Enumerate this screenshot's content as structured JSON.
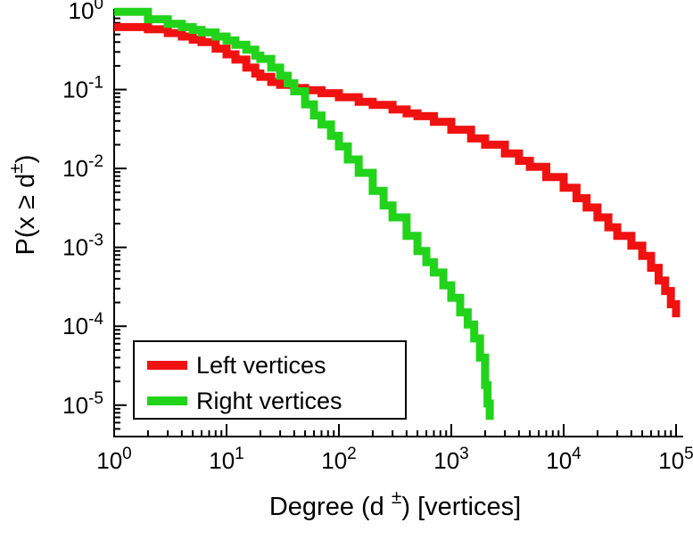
{
  "chart_data": {
    "type": "line",
    "scale": "log-log",
    "step": true,
    "title": "",
    "xlabel": {
      "prefix": "Degree (d ",
      "sup": "±",
      "suffix": ") [vertices]"
    },
    "ylabel": {
      "prefix": "P(x ≥ d",
      "sup": "±",
      "suffix": ")"
    },
    "xlim": [
      1,
      100000
    ],
    "ylim": [
      4e-06,
      1
    ],
    "x_tick_exponents": [
      0,
      1,
      2,
      3,
      4,
      5
    ],
    "y_tick_exponents": [
      0,
      -1,
      -2,
      -3,
      -4,
      -5
    ],
    "grid": false,
    "legend": {
      "position": "bottom-left",
      "border": true,
      "background": "#ffffff"
    },
    "colors": {
      "axis": "#000000",
      "left_series": "#f01111",
      "right_series": "#22d31b"
    },
    "series": [
      {
        "name": "Left vertices",
        "color": "#f01111",
        "points": [
          [
            1,
            0.62
          ],
          [
            2,
            0.58
          ],
          [
            3,
            0.52
          ],
          [
            4,
            0.47
          ],
          [
            5,
            0.43
          ],
          [
            6,
            0.4
          ],
          [
            8,
            0.33
          ],
          [
            10,
            0.28
          ],
          [
            12,
            0.24
          ],
          [
            15,
            0.19
          ],
          [
            18,
            0.16
          ],
          [
            20,
            0.145
          ],
          [
            25,
            0.125
          ],
          [
            30,
            0.115
          ],
          [
            40,
            0.105
          ],
          [
            50,
            0.098
          ],
          [
            70,
            0.09
          ],
          [
            100,
            0.08
          ],
          [
            150,
            0.07
          ],
          [
            200,
            0.064
          ],
          [
            300,
            0.056
          ],
          [
            400,
            0.05
          ],
          [
            500,
            0.046
          ],
          [
            700,
            0.039
          ],
          [
            1000,
            0.031
          ],
          [
            1500,
            0.024
          ],
          [
            2000,
            0.02
          ],
          [
            3000,
            0.0155
          ],
          [
            4000,
            0.0125
          ],
          [
            5000,
            0.0105
          ],
          [
            7000,
            0.0078
          ],
          [
            10000,
            0.0057
          ],
          [
            13000,
            0.0042
          ],
          [
            16000,
            0.0032
          ],
          [
            20000,
            0.0024
          ],
          [
            25000,
            0.0018
          ],
          [
            30000,
            0.0014
          ],
          [
            40000,
            0.00105
          ],
          [
            50000,
            0.00078
          ],
          [
            60000,
            0.00055
          ],
          [
            70000,
            0.00038
          ],
          [
            80000,
            0.00028
          ],
          [
            90000,
            0.00019
          ],
          [
            100000,
            0.00013
          ]
        ]
      },
      {
        "name": "Right vertices",
        "color": "#22d31b",
        "points": [
          [
            1,
            0.97
          ],
          [
            2,
            0.78
          ],
          [
            3,
            0.68
          ],
          [
            4,
            0.62
          ],
          [
            5,
            0.57
          ],
          [
            6,
            0.53
          ],
          [
            8,
            0.47
          ],
          [
            10,
            0.42
          ],
          [
            12,
            0.37
          ],
          [
            15,
            0.32
          ],
          [
            18,
            0.27
          ],
          [
            20,
            0.245
          ],
          [
            25,
            0.19
          ],
          [
            30,
            0.15
          ],
          [
            35,
            0.12
          ],
          [
            40,
            0.095
          ],
          [
            50,
            0.065
          ],
          [
            60,
            0.047
          ],
          [
            70,
            0.036
          ],
          [
            85,
            0.026
          ],
          [
            100,
            0.019
          ],
          [
            120,
            0.013
          ],
          [
            150,
            0.0088
          ],
          [
            200,
            0.0052
          ],
          [
            250,
            0.0034
          ],
          [
            300,
            0.0024
          ],
          [
            400,
            0.0014
          ],
          [
            500,
            0.0009
          ],
          [
            600,
            0.00065
          ],
          [
            700,
            0.00048
          ],
          [
            850,
            0.00033
          ],
          [
            1000,
            0.00023
          ],
          [
            1200,
            0.00015
          ],
          [
            1400,
            0.000105
          ],
          [
            1600,
            7e-05
          ],
          [
            1800,
            4e-05
          ],
          [
            2000,
            1.8e-05
          ],
          [
            2100,
            1.05e-05
          ],
          [
            2200,
            6.5e-06
          ]
        ]
      }
    ]
  }
}
